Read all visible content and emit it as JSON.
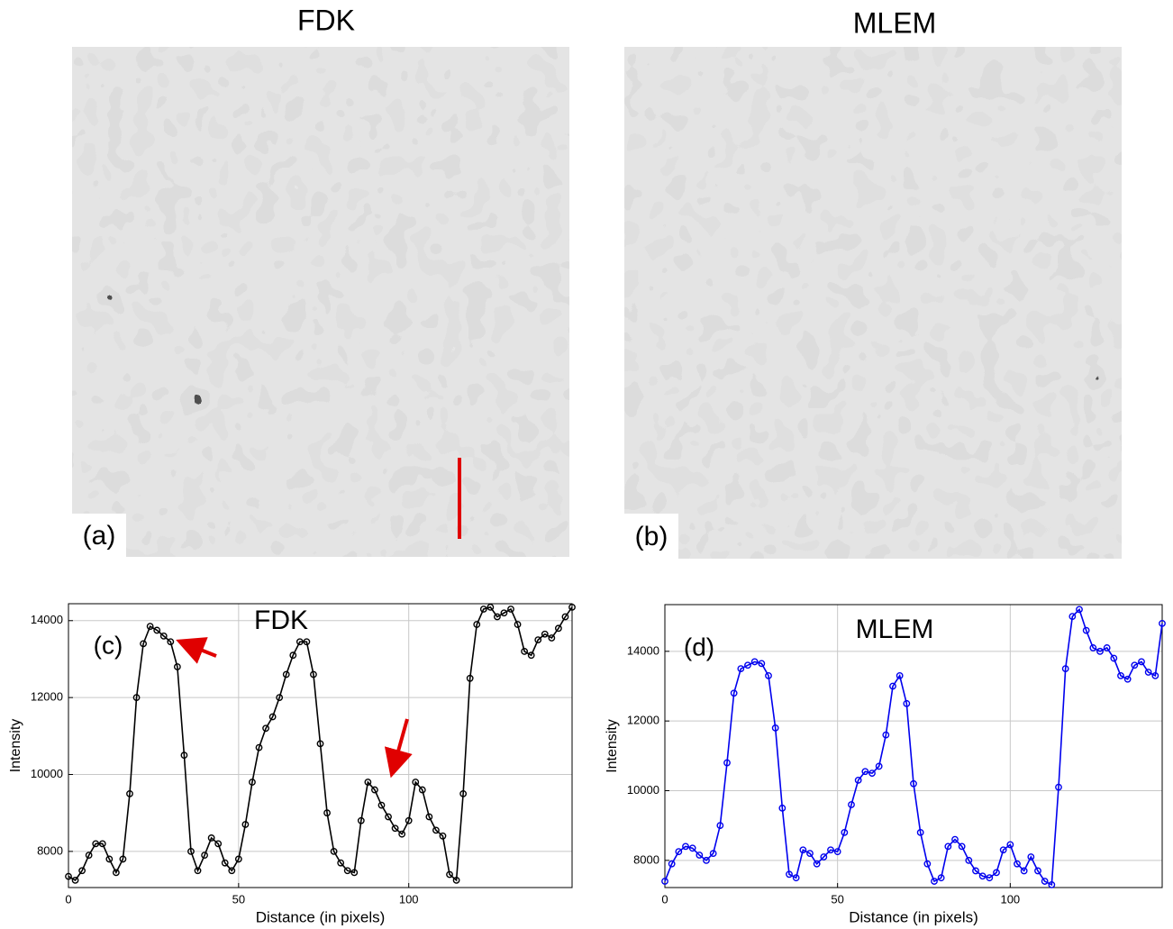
{
  "images": [
    {
      "title": "FDK",
      "label": "(a)"
    },
    {
      "title": "MLEM",
      "label": "(b)"
    }
  ],
  "chart_data": [
    {
      "type": "line",
      "annotation": "FDK",
      "panel_label": "(c)",
      "x_label": "Distance (in pixels)",
      "y_label": "Intensity",
      "x": [
        0,
        2,
        4,
        6,
        8,
        10,
        12,
        14,
        16,
        18,
        20,
        22,
        24,
        26,
        28,
        30,
        32,
        34,
        36,
        38,
        40,
        42,
        44,
        46,
        48,
        50,
        52,
        54,
        56,
        58,
        60,
        62,
        64,
        66,
        68,
        70,
        72,
        74,
        76,
        78,
        80,
        82,
        84,
        86,
        88,
        90,
        92,
        94,
        96,
        98,
        100,
        102,
        104,
        106,
        108,
        110,
        112,
        114,
        116,
        118,
        120,
        122,
        124,
        126,
        128,
        130,
        132,
        134,
        136,
        138,
        140,
        142,
        144,
        146,
        148
      ],
      "series": [
        {
          "color": "#000000",
          "values": [
            7350,
            7250,
            7500,
            7900,
            8200,
            8200,
            7800,
            7450,
            7800,
            9500,
            12000,
            13400,
            13850,
            13750,
            13600,
            13450,
            12800,
            10500,
            8000,
            7500,
            7900,
            8350,
            8200,
            7700,
            7500,
            7800,
            8700,
            9800,
            10700,
            11200,
            11500,
            12000,
            12600,
            13100,
            13450,
            13450,
            12600,
            10800,
            9000,
            8000,
            7700,
            7500,
            7450,
            8800,
            9800,
            9600,
            9200,
            8900,
            8600,
            8450,
            8800,
            9800,
            9600,
            8900,
            8550,
            8400,
            7400,
            7250,
            9500,
            12500,
            13900,
            14300,
            14350,
            14100,
            14200,
            14300,
            13900,
            13200,
            13100,
            13500,
            13650,
            13550,
            13800,
            14100,
            14350
          ]
        }
      ],
      "xlim": [
        0,
        148
      ],
      "ylim": [
        7060,
        14440
      ],
      "xticks": [
        0,
        50,
        100
      ],
      "yticks": [
        8000,
        10000,
        12000,
        14000
      ],
      "grid": true
    },
    {
      "type": "line",
      "annotation": "MLEM",
      "panel_label": "(d)",
      "x_label": "Distance (in pixels)",
      "y_label": "Intensity",
      "x": [
        0,
        2,
        4,
        6,
        8,
        10,
        12,
        14,
        16,
        18,
        20,
        22,
        24,
        26,
        28,
        30,
        32,
        34,
        36,
        38,
        40,
        42,
        44,
        46,
        48,
        50,
        52,
        54,
        56,
        58,
        60,
        62,
        64,
        66,
        68,
        70,
        72,
        74,
        76,
        78,
        80,
        82,
        84,
        86,
        88,
        90,
        92,
        94,
        96,
        98,
        100,
        102,
        104,
        106,
        108,
        110,
        112,
        114,
        116,
        118,
        120,
        122,
        124,
        126,
        128,
        130,
        132,
        134,
        136,
        138,
        140,
        142,
        144
      ],
      "series": [
        {
          "color": "#0000ee",
          "values": [
            7400,
            7900,
            8250,
            8400,
            8350,
            8150,
            8000,
            8200,
            9000,
            10800,
            12800,
            13500,
            13600,
            13700,
            13650,
            13300,
            11800,
            9500,
            7600,
            7500,
            8300,
            8200,
            7900,
            8100,
            8300,
            8250,
            8800,
            9600,
            10300,
            10550,
            10500,
            10700,
            11600,
            13000,
            13300,
            12500,
            10200,
            8800,
            7900,
            7400,
            7500,
            8400,
            8600,
            8400,
            8000,
            7700,
            7550,
            7500,
            7650,
            8300,
            8450,
            7900,
            7700,
            8100,
            7700,
            7400,
            7300,
            10100,
            13500,
            15000,
            15200,
            14600,
            14100,
            14000,
            14100,
            13800,
            13300,
            13200,
            13600,
            13700,
            13400,
            13300,
            14800
          ]
        }
      ],
      "xlim": [
        0,
        144
      ],
      "ylim": [
        7220,
        15340
      ],
      "xticks": [
        0,
        50,
        100
      ],
      "yticks": [
        8000,
        10000,
        12000,
        14000
      ],
      "grid": true
    }
  ]
}
